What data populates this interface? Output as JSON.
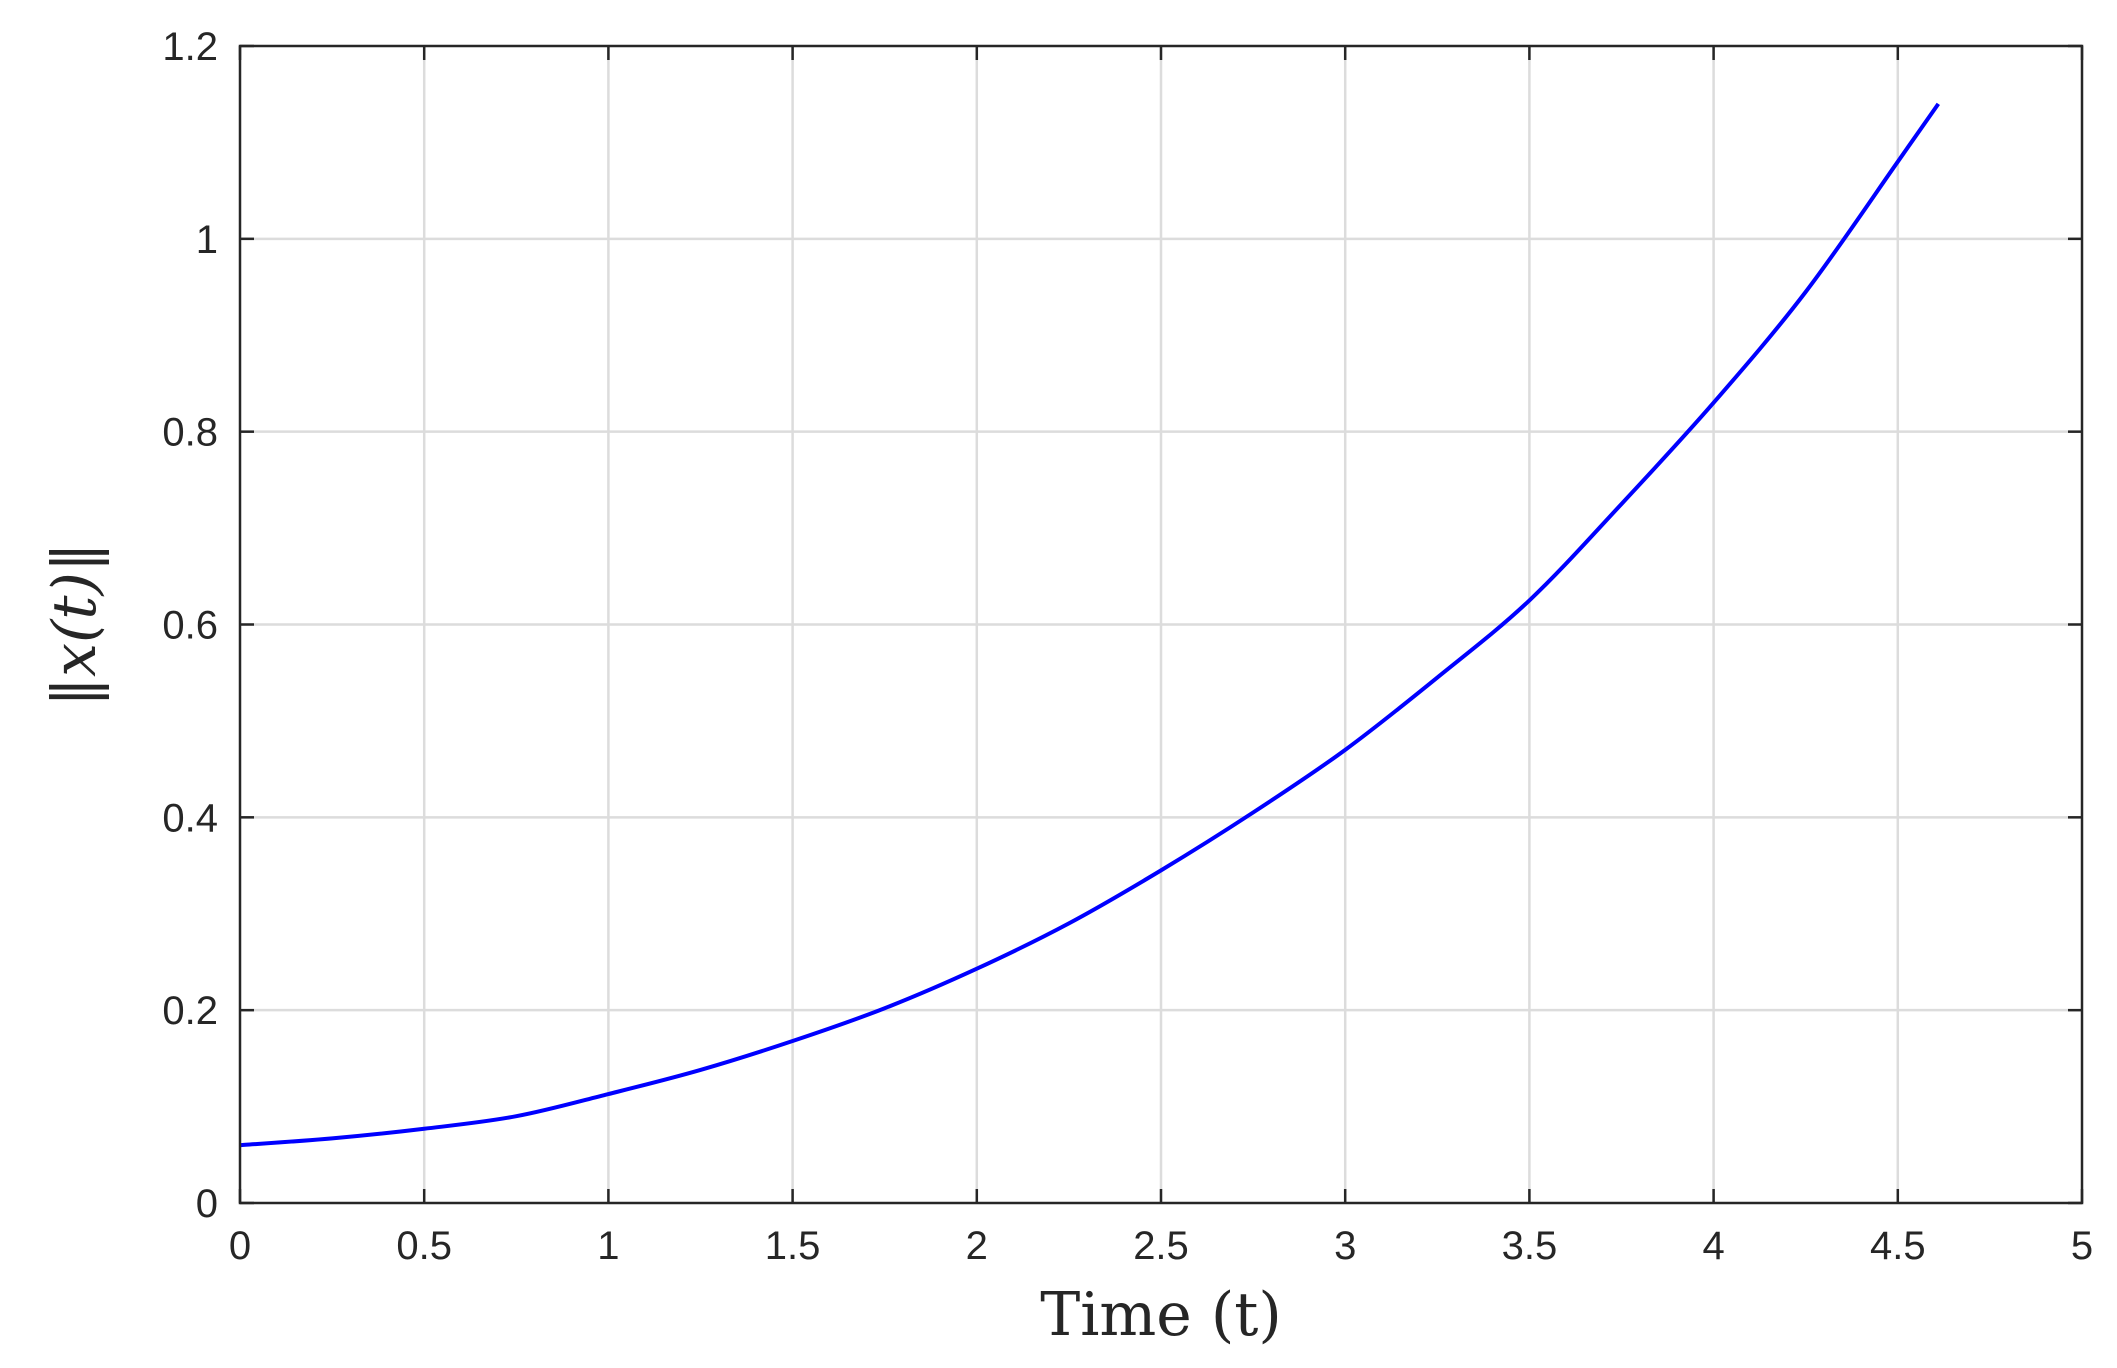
{
  "chart_data": {
    "type": "line",
    "xlabel": "Time (t)",
    "ylabel": "‖x(t)‖",
    "xlim": [
      0,
      5
    ],
    "ylim": [
      0,
      1.2
    ],
    "xticks": [
      0,
      0.5,
      1,
      1.5,
      2,
      2.5,
      3,
      3.5,
      4,
      4.5,
      5
    ],
    "xtick_labels": [
      "0",
      "0.5",
      "1",
      "1.5",
      "2",
      "2.5",
      "3",
      "3.5",
      "4",
      "4.5",
      "5"
    ],
    "yticks": [
      0,
      0.2,
      0.4,
      0.6,
      0.8,
      1,
      1.2
    ],
    "ytick_labels": [
      "0",
      "0.2",
      "0.4",
      "0.6",
      "0.8",
      "1",
      "1.2"
    ],
    "grid": true,
    "series": [
      {
        "color": "#0000ff",
        "x": [
          0,
          0.25,
          0.5,
          0.75,
          1,
          1.25,
          1.5,
          1.75,
          2,
          2.25,
          2.5,
          2.75,
          3,
          3.25,
          3.5,
          3.75,
          4,
          4.25,
          4.5,
          4.61
        ],
        "y": [
          0.06,
          0.067,
          0.077,
          0.09,
          0.113,
          0.138,
          0.168,
          0.202,
          0.243,
          0.29,
          0.345,
          0.405,
          0.47,
          0.545,
          0.625,
          0.725,
          0.83,
          0.945,
          1.08,
          1.14
        ]
      }
    ]
  }
}
